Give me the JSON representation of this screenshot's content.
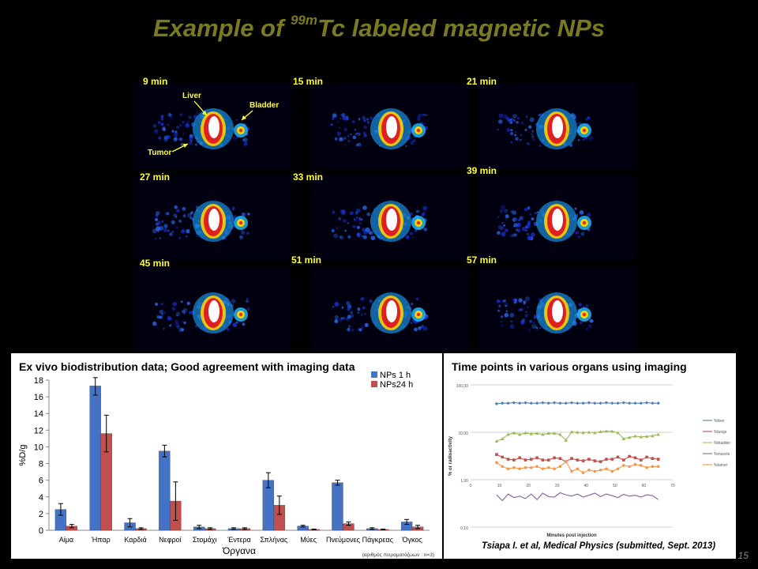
{
  "title": {
    "prefix": "Example of ",
    "superscript": "99m",
    "suffix": "Tc labeled magnetic NPs"
  },
  "scans": {
    "time_labels": [
      "9 min",
      "15 min",
      "21 min",
      "27 min",
      "33 min",
      "39 min",
      "45 min",
      "51 min",
      "57 min"
    ],
    "annotations": {
      "liver": "Liver",
      "bladder": "Bladder",
      "tumor": "Tumor"
    }
  },
  "left_panel": {
    "heading": "Ex vivo biodistribution data; Good agreement with imaging data",
    "footnote": "(αριθμός πειραματόζωων : n=3)"
  },
  "right_panel": {
    "heading": "Time points in various organs using imaging",
    "citation": "Tsiapa I. et al, Medical Physics (submitted, Sept. 2013)"
  },
  "slide_number": "15",
  "colors": {
    "title": "#7a7a22",
    "label": "#ffff33",
    "series_1h": "#4472c4",
    "series_24h": "#c0504d",
    "liver": "#4f81bd",
    "lungs": "#c0504d",
    "bladder": "#9bbb59",
    "muscle": "#8064a2",
    "tumor": "#f79646"
  },
  "chart_data": [
    {
      "type": "bar",
      "xlabel": "Όργανα",
      "ylabel": "%D/g",
      "ylim": [
        0,
        18
      ],
      "yticks": [
        0,
        2,
        4,
        6,
        8,
        10,
        12,
        14,
        16,
        18
      ],
      "grid": false,
      "legend_position": "top-right",
      "categories": [
        "Αίμα",
        "Ήπαρ",
        "Καρδιά",
        "Νεφροί",
        "Στομάχι",
        "Έντερα",
        "Σπλήνας",
        "Μύες",
        "Πνεύμονες",
        "Πάγκρεας",
        "Όγκος"
      ],
      "series": [
        {
          "name": "NPs 1 h",
          "values": [
            2.5,
            17.3,
            0.9,
            9.5,
            0.4,
            0.2,
            6.0,
            0.5,
            5.7,
            0.2,
            1.0
          ],
          "errors": [
            0.7,
            1.1,
            0.5,
            0.7,
            0.2,
            0.1,
            0.9,
            0.1,
            0.3,
            0.1,
            0.3
          ]
        },
        {
          "name": "NPs24 h",
          "values": [
            0.5,
            11.6,
            0.2,
            3.5,
            0.2,
            0.2,
            3.0,
            0.1,
            0.8,
            0.1,
            0.4
          ],
          "errors": [
            0.2,
            2.2,
            0.1,
            2.3,
            0.1,
            0.1,
            1.1,
            0.05,
            0.2,
            0.05,
            0.2
          ]
        }
      ]
    },
    {
      "type": "line",
      "xlabel": "Minutes post injection",
      "ylabel": "% or radioactivity",
      "y_scale": "log",
      "ylim": [
        0.1,
        100
      ],
      "ytick_labels": [
        "100,00",
        "10,00",
        "1,00",
        "0,10"
      ],
      "xlim": [
        0,
        70
      ],
      "xticks": [
        0,
        10,
        20,
        30,
        40,
        50,
        60,
        70
      ],
      "grid": true,
      "legend_position": "right",
      "x": [
        9,
        11,
        13,
        15,
        17,
        19,
        21,
        23,
        25,
        27,
        29,
        31,
        33,
        35,
        37,
        39,
        41,
        43,
        45,
        47,
        49,
        51,
        53,
        55,
        57,
        59,
        61,
        63,
        65
      ],
      "series": [
        {
          "name": "%liver",
          "values": [
            40,
            41,
            41,
            42,
            41,
            42,
            41,
            41,
            42,
            41,
            42,
            41,
            41,
            42,
            41,
            41,
            42,
            41,
            41,
            42,
            41,
            41,
            42,
            41,
            41,
            41,
            42,
            41,
            41
          ]
        },
        {
          "name": "%lungs",
          "values": [
            3.4,
            3.0,
            2.7,
            2.6,
            2.9,
            2.6,
            2.7,
            2.9,
            2.6,
            2.6,
            2.9,
            2.8,
            2.4,
            2.8,
            2.6,
            2.5,
            2.7,
            2.5,
            2.4,
            2.7,
            2.7,
            3.0,
            2.6,
            3.1,
            2.9,
            2.6,
            3.0,
            2.8,
            2.7
          ]
        },
        {
          "name": "%bladder",
          "values": [
            6.5,
            7.3,
            9.0,
            9.7,
            9.0,
            9.7,
            9.3,
            9.5,
            9.0,
            9.5,
            9.5,
            9.0,
            6.8,
            10.2,
            10.0,
            9.8,
            10.0,
            9.8,
            10.3,
            10.5,
            10.5,
            9.8,
            7.3,
            7.8,
            8.3,
            8.0,
            8.2,
            8.4,
            9.0
          ]
        },
        {
          "name": "%muscle",
          "values": [
            0.48,
            0.36,
            0.5,
            0.42,
            0.45,
            0.4,
            0.5,
            0.38,
            0.52,
            0.44,
            0.43,
            0.53,
            0.48,
            0.45,
            0.5,
            0.43,
            0.47,
            0.52,
            0.44,
            0.5,
            0.46,
            0.42,
            0.49,
            0.45,
            0.47,
            0.43,
            0.48,
            0.46,
            0.38
          ]
        },
        {
          "name": "%tumor",
          "values": [
            2.3,
            1.9,
            1.7,
            1.8,
            1.7,
            1.8,
            1.8,
            1.9,
            1.7,
            1.8,
            1.7,
            1.9,
            2.4,
            1.5,
            1.7,
            1.4,
            1.6,
            1.5,
            1.6,
            1.7,
            1.5,
            1.7,
            2.0,
            1.9,
            2.1,
            2.0,
            1.8,
            1.9,
            1.9
          ]
        }
      ]
    }
  ]
}
